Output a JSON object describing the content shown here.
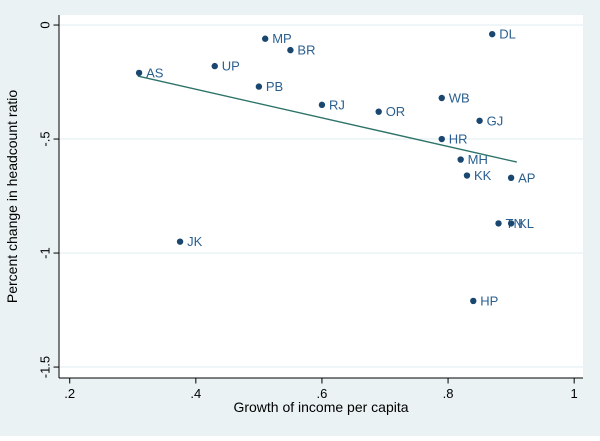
{
  "figure": {
    "background_color": "#eaf2f3",
    "plot_background_color": "#ffffff",
    "grid_color": "#e2edef",
    "axis_color": "#000000",
    "tick_label_color": "#000000"
  },
  "chart_data": {
    "type": "scatter",
    "title": "",
    "xlabel": "Growth of income per capita",
    "ylabel": "Percent change in headcount ratio",
    "xlim": [
      0.183,
      1.014
    ],
    "ylim": [
      -1.548,
      0.044
    ],
    "grid": "horizontal",
    "legend": "none",
    "marker_color": "#1a476f",
    "marker_label_color": "#2a5f8f",
    "trend_color": "#2d7369",
    "x_ticks": [
      {
        "value": 0.2,
        "label": ".2"
      },
      {
        "value": 0.4,
        "label": ".4"
      },
      {
        "value": 0.6,
        "label": ".6"
      },
      {
        "value": 0.8,
        "label": ".8"
      },
      {
        "value": 1.0,
        "label": "1"
      }
    ],
    "y_ticks": [
      {
        "value": 0,
        "label": "0"
      },
      {
        "value": -0.5,
        "label": "-.5"
      },
      {
        "value": -1,
        "label": "-1"
      },
      {
        "value": -1.5,
        "label": "-1.5"
      }
    ],
    "points": [
      {
        "label": "AS",
        "x": 0.31,
        "y": -0.21
      },
      {
        "label": "UP",
        "x": 0.43,
        "y": -0.18
      },
      {
        "label": "MP",
        "x": 0.51,
        "y": -0.06
      },
      {
        "label": "BR",
        "x": 0.55,
        "y": -0.11
      },
      {
        "label": "PB",
        "x": 0.5,
        "y": -0.27
      },
      {
        "label": "RJ",
        "x": 0.6,
        "y": -0.35
      },
      {
        "label": "OR",
        "x": 0.69,
        "y": -0.38
      },
      {
        "label": "WB",
        "x": 0.79,
        "y": -0.32
      },
      {
        "label": "DL",
        "x": 0.87,
        "y": -0.04
      },
      {
        "label": "GJ",
        "x": 0.85,
        "y": -0.42
      },
      {
        "label": "HR",
        "x": 0.79,
        "y": -0.5
      },
      {
        "label": "MH",
        "x": 0.82,
        "y": -0.59
      },
      {
        "label": "KK",
        "x": 0.83,
        "y": -0.66
      },
      {
        "label": "AP",
        "x": 0.9,
        "y": -0.67
      },
      {
        "label": "TN",
        "x": 0.88,
        "y": -0.87
      },
      {
        "label": "KL",
        "x": 0.9,
        "y": -0.87
      },
      {
        "label": "JK",
        "x": 0.375,
        "y": -0.95
      },
      {
        "label": "HP",
        "x": 0.84,
        "y": -1.21
      }
    ],
    "trend_line": {
      "x1": 0.308,
      "y1": -0.224,
      "x2": 0.909,
      "y2": -0.601
    }
  }
}
